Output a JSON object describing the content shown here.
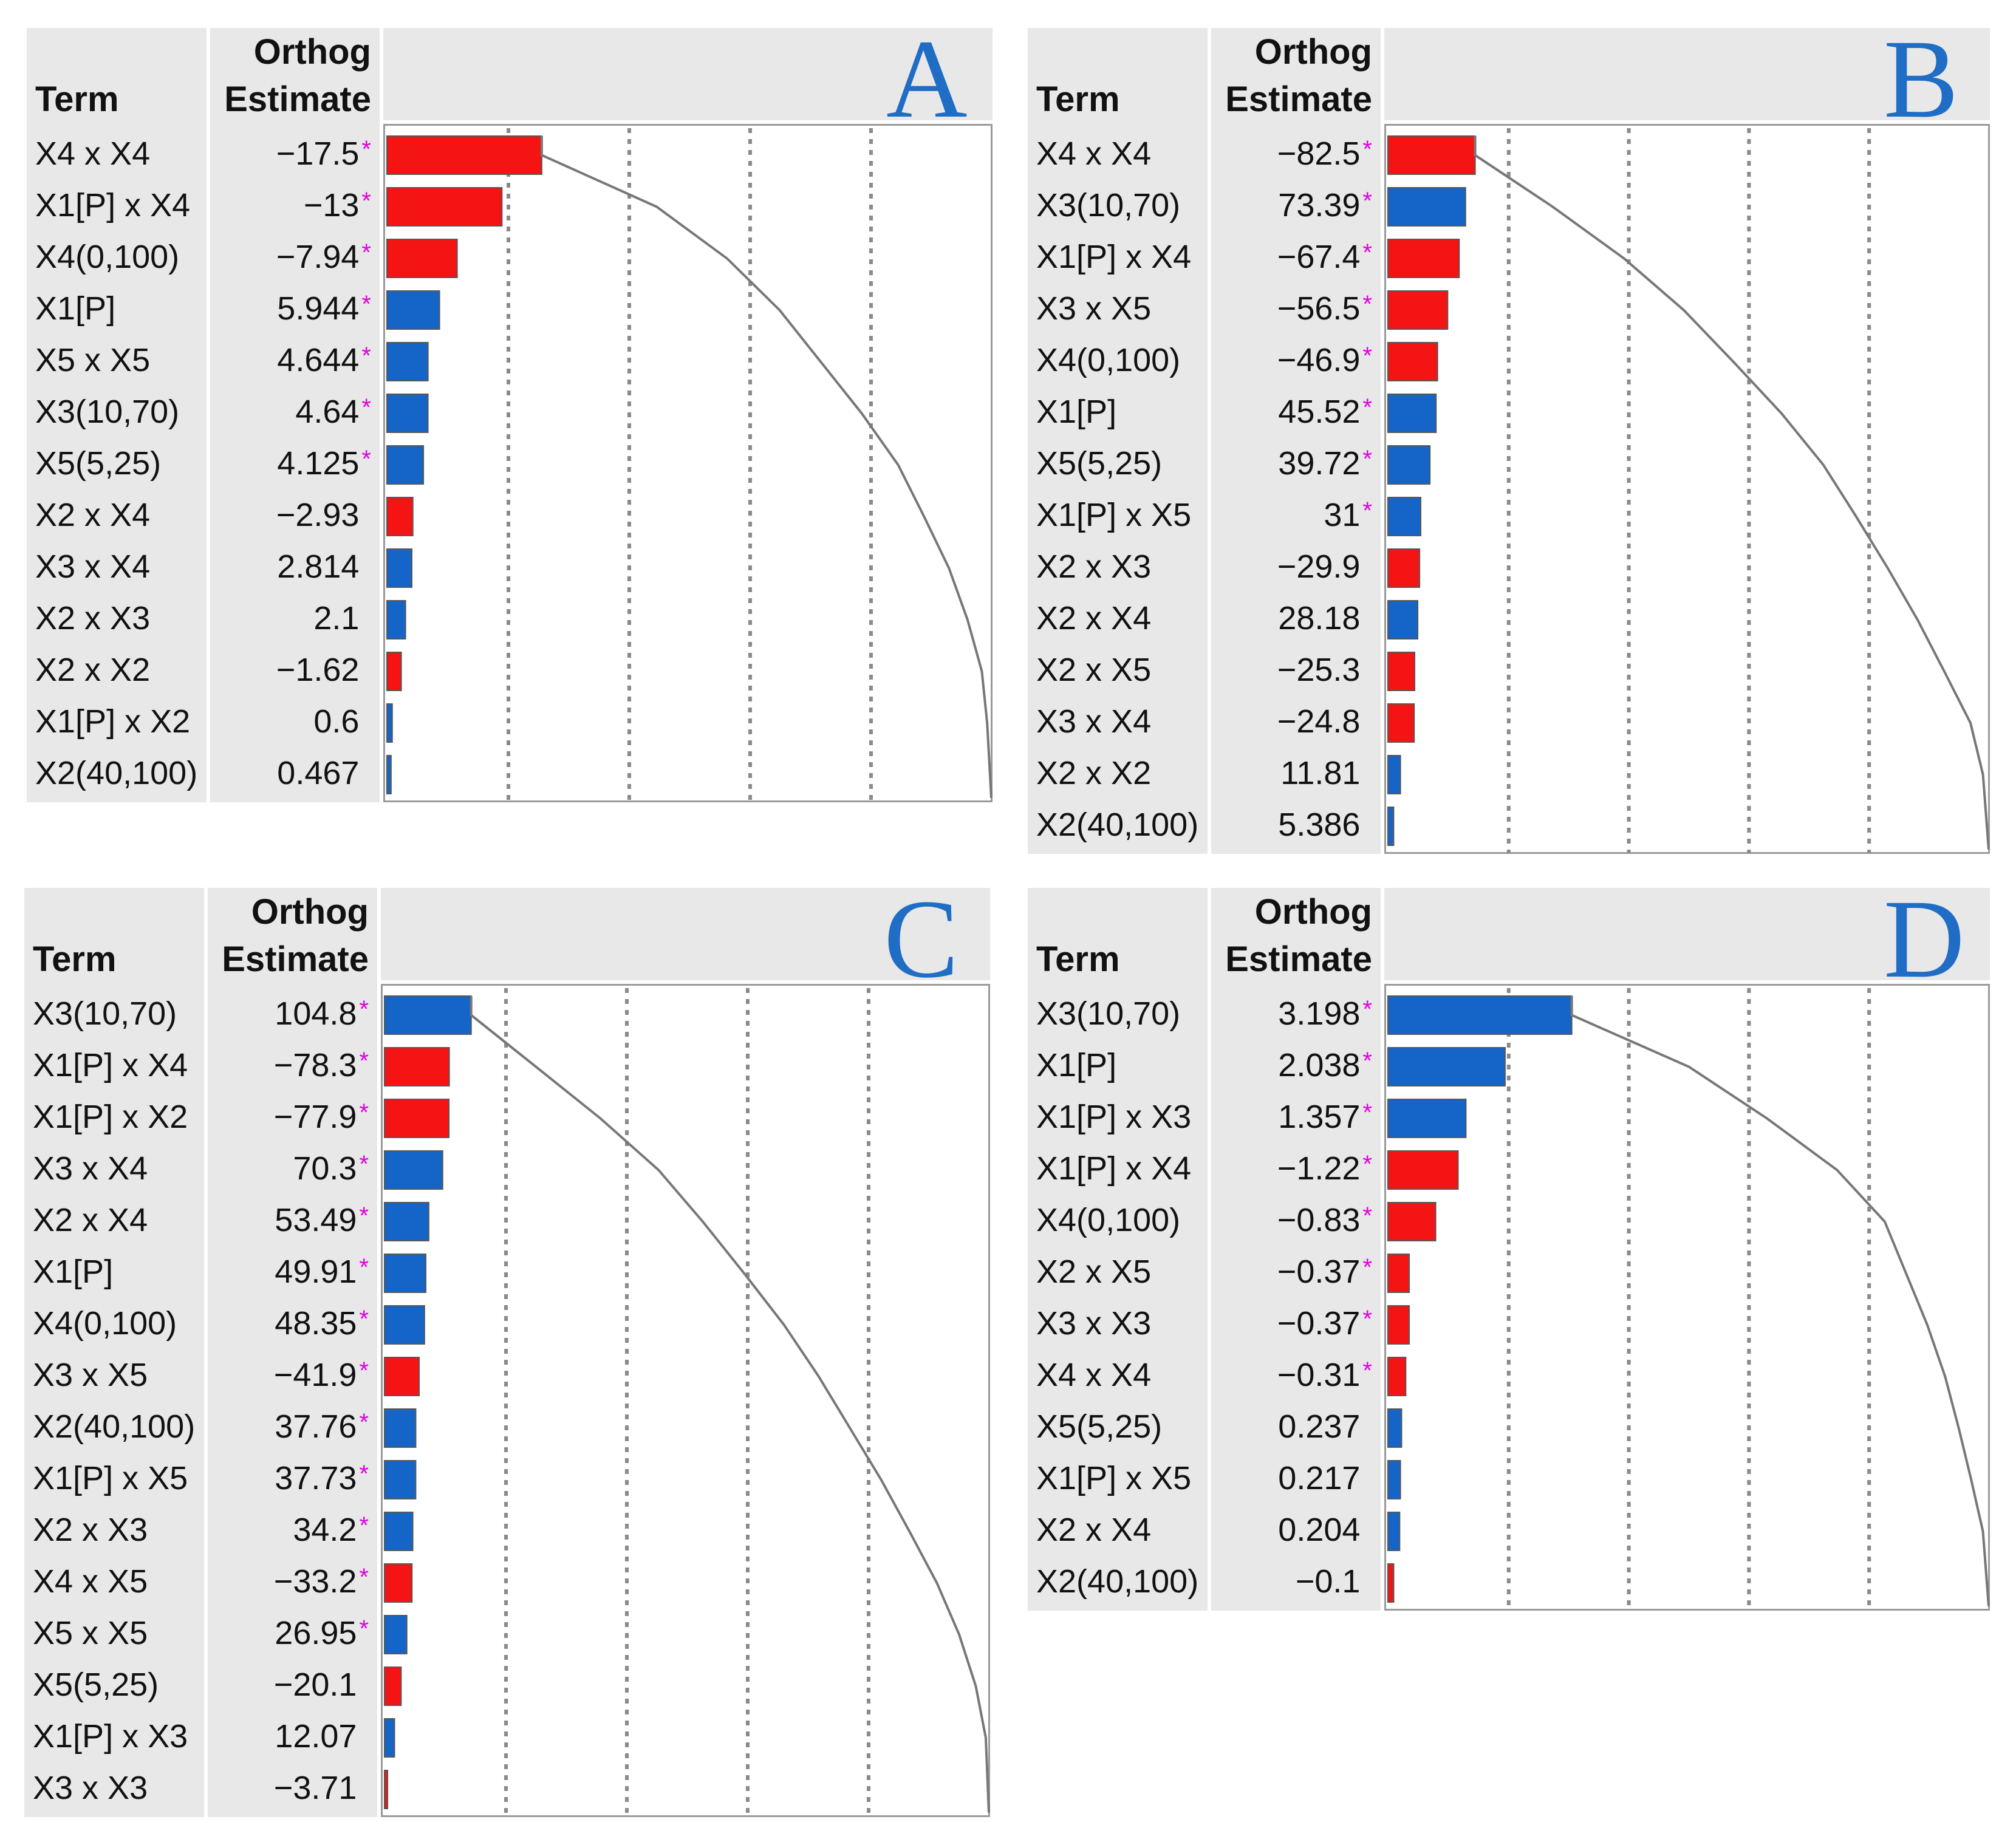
{
  "colors": {
    "positive": "#1565c8",
    "negative": "#f51414",
    "star": "#e000e0",
    "letter": "#1f6dc4",
    "curve": "#777777"
  },
  "chart_data": [
    {
      "type": "bar",
      "letter": "A",
      "col_term": "Term",
      "col_est_1": "Orthog",
      "col_est_2": "Estimate",
      "xlim": [
        0,
        100
      ],
      "rows": [
        {
          "term": "X4 x X4",
          "estimate": "−17.5",
          "value": -17.5,
          "sig": true
        },
        {
          "term": "X1[P] x X4",
          "estimate": "−13",
          "value": -13,
          "sig": true
        },
        {
          "term": "X4(0,100)",
          "estimate": "−7.94",
          "value": -7.94,
          "sig": true
        },
        {
          "term": "X1[P]",
          "estimate": "5.944",
          "value": 5.944,
          "sig": true
        },
        {
          "term": "X5 x X5",
          "estimate": "4.644",
          "value": 4.644,
          "sig": true
        },
        {
          "term": "X3(10,70)",
          "estimate": "4.64",
          "value": 4.64,
          "sig": true
        },
        {
          "term": "X5(5,25)",
          "estimate": "4.125",
          "value": 4.125,
          "sig": true
        },
        {
          "term": "X2 x X4",
          "estimate": "−2.93",
          "value": -2.93,
          "sig": false
        },
        {
          "term": "X3 x X4",
          "estimate": "2.814",
          "value": 2.814,
          "sig": false
        },
        {
          "term": "X2 x X3",
          "estimate": "2.1",
          "value": 2.1,
          "sig": false
        },
        {
          "term": "X2 x X2",
          "estimate": "−1.62",
          "value": -1.62,
          "sig": false
        },
        {
          "term": "X1[P] x X2",
          "estimate": "0.6",
          "value": 0.6,
          "sig": false
        },
        {
          "term": "X2(40,100)",
          "estimate": "0.467",
          "value": 0.467,
          "sig": false
        }
      ]
    },
    {
      "type": "bar",
      "letter": "B",
      "col_term": "Term",
      "col_est_1": "Orthog",
      "col_est_2": "Estimate",
      "xlim": [
        0,
        100
      ],
      "rows": [
        {
          "term": "X4 x X4",
          "estimate": "−82.5",
          "value": -82.5,
          "sig": true
        },
        {
          "term": "X3(10,70)",
          "estimate": "73.39",
          "value": 73.39,
          "sig": true
        },
        {
          "term": "X1[P] x X4",
          "estimate": "−67.4",
          "value": -67.4,
          "sig": true
        },
        {
          "term": "X3 x X5",
          "estimate": "−56.5",
          "value": -56.5,
          "sig": true
        },
        {
          "term": "X4(0,100)",
          "estimate": "−46.9",
          "value": -46.9,
          "sig": true
        },
        {
          "term": "X1[P]",
          "estimate": "45.52",
          "value": 45.52,
          "sig": true
        },
        {
          "term": "X5(5,25)",
          "estimate": "39.72",
          "value": 39.72,
          "sig": true
        },
        {
          "term": "X1[P] x X5",
          "estimate": "31",
          "value": 31,
          "sig": true
        },
        {
          "term": "X2 x X3",
          "estimate": "−29.9",
          "value": -29.9,
          "sig": false
        },
        {
          "term": "X2 x X4",
          "estimate": "28.18",
          "value": 28.18,
          "sig": false
        },
        {
          "term": "X2 x X5",
          "estimate": "−25.3",
          "value": -25.3,
          "sig": false
        },
        {
          "term": "X3 x X4",
          "estimate": "−24.8",
          "value": -24.8,
          "sig": false
        },
        {
          "term": "X2 x X2",
          "estimate": "11.81",
          "value": 11.81,
          "sig": false
        },
        {
          "term": "X2(40,100)",
          "estimate": "5.386",
          "value": 5.386,
          "sig": false
        }
      ]
    },
    {
      "type": "bar",
      "letter": "C",
      "col_term": "Term",
      "col_est_1": "Orthog",
      "col_est_2": "Estimate",
      "xlim": [
        0,
        100
      ],
      "rows": [
        {
          "term": "X3(10,70)",
          "estimate": "104.8",
          "value": 104.8,
          "sig": true
        },
        {
          "term": "X1[P] x X4",
          "estimate": "−78.3",
          "value": -78.3,
          "sig": true
        },
        {
          "term": "X1[P] x X2",
          "estimate": "−77.9",
          "value": -77.9,
          "sig": true
        },
        {
          "term": "X3 x X4",
          "estimate": "70.3",
          "value": 70.3,
          "sig": true
        },
        {
          "term": "X2 x X4",
          "estimate": "53.49",
          "value": 53.49,
          "sig": true
        },
        {
          "term": "X1[P]",
          "estimate": "49.91",
          "value": 49.91,
          "sig": true
        },
        {
          "term": "X4(0,100)",
          "estimate": "48.35",
          "value": 48.35,
          "sig": true
        },
        {
          "term": "X3 x X5",
          "estimate": "−41.9",
          "value": -41.9,
          "sig": true
        },
        {
          "term": "X2(40,100)",
          "estimate": "37.76",
          "value": 37.76,
          "sig": true
        },
        {
          "term": "X1[P] x X5",
          "estimate": "37.73",
          "value": 37.73,
          "sig": true
        },
        {
          "term": "X2 x X3",
          "estimate": "34.2",
          "value": 34.2,
          "sig": true
        },
        {
          "term": "X4 x X5",
          "estimate": "−33.2",
          "value": -33.2,
          "sig": true
        },
        {
          "term": "X5 x X5",
          "estimate": "26.95",
          "value": 26.95,
          "sig": true
        },
        {
          "term": "X5(5,25)",
          "estimate": "−20.1",
          "value": -20.1,
          "sig": false
        },
        {
          "term": "X1[P] x X3",
          "estimate": "12.07",
          "value": 12.07,
          "sig": false
        },
        {
          "term": "X3 x X3",
          "estimate": "−3.71",
          "value": -3.71,
          "sig": false
        }
      ]
    },
    {
      "type": "bar",
      "letter": "D",
      "col_term": "Term",
      "col_est_1": "Orthog",
      "col_est_2": "Estimate",
      "xlim": [
        0,
        100
      ],
      "rows": [
        {
          "term": "X3(10,70)",
          "estimate": "3.198",
          "value": 3.198,
          "sig": true
        },
        {
          "term": "X1[P]",
          "estimate": "2.038",
          "value": 2.038,
          "sig": true
        },
        {
          "term": "X1[P] x X3",
          "estimate": "1.357",
          "value": 1.357,
          "sig": true
        },
        {
          "term": "X1[P] x X4",
          "estimate": "−1.22",
          "value": -1.22,
          "sig": true
        },
        {
          "term": "X4(0,100)",
          "estimate": "−0.83",
          "value": -0.83,
          "sig": true
        },
        {
          "term": "X2 x X5",
          "estimate": "−0.37",
          "value": -0.37,
          "sig": true
        },
        {
          "term": "X3 x X3",
          "estimate": "−0.37",
          "value": -0.37,
          "sig": true
        },
        {
          "term": "X4 x X4",
          "estimate": "−0.31",
          "value": -0.31,
          "sig": true
        },
        {
          "term": "X5(5,25)",
          "estimate": "0.237",
          "value": 0.237,
          "sig": false
        },
        {
          "term": "X1[P] x X5",
          "estimate": "0.217",
          "value": 0.217,
          "sig": false
        },
        {
          "term": "X2 x X4",
          "estimate": "0.204",
          "value": 0.204,
          "sig": false
        },
        {
          "term": "X2(40,100)",
          "estimate": "−0.1",
          "value": -0.1,
          "sig": false
        }
      ]
    }
  ]
}
